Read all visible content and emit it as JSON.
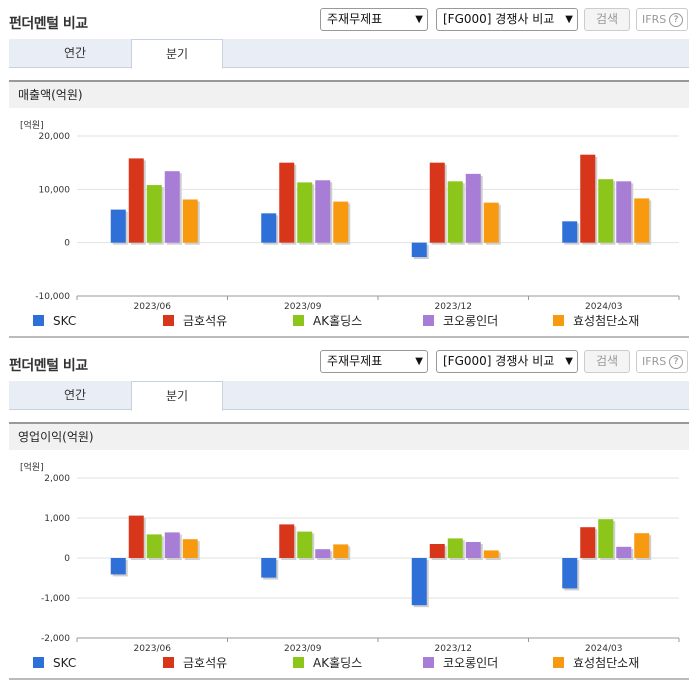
{
  "panels": [
    {
      "title": "펀더멘털 비교",
      "select1": "주재무제표",
      "select2": "[FG000] 경쟁사 비교",
      "search_label": "검색",
      "ifrs_label": "IFRS",
      "help_label": "?",
      "tabs": [
        "연간",
        "분기"
      ],
      "active_tab": 1,
      "chart_title": "매출액(억원)",
      "unit_label": "[억원]"
    },
    {
      "title": "펀더멘털 비교",
      "select1": "주재무제표",
      "select2": "[FG000] 경쟁사 비교",
      "search_label": "검색",
      "ifrs_label": "IFRS",
      "help_label": "?",
      "tabs": [
        "연간",
        "분기"
      ],
      "active_tab": 1,
      "chart_title": "영업이익(억원)",
      "unit_label": "[억원]"
    }
  ],
  "series_colors": [
    "#2e6fd8",
    "#d8361b",
    "#8cc61a",
    "#a77dd6",
    "#f89a10"
  ],
  "chart_data": [
    {
      "type": "bar",
      "title": "매출액(억원)",
      "ylabel": "[억원]",
      "categories": [
        "2023/06",
        "2023/09",
        "2023/12",
        "2024/03"
      ],
      "yticks": [
        "20,000",
        "10,000",
        "0",
        "-10,000"
      ],
      "ylim": [
        -10000,
        20000
      ],
      "series": [
        {
          "name": "SKC",
          "values": [
            6200,
            5500,
            -2700,
            4000
          ]
        },
        {
          "name": "금호석유",
          "values": [
            15800,
            15000,
            15000,
            16500
          ]
        },
        {
          "name": "AK홀딩스",
          "values": [
            10800,
            11300,
            11500,
            11900
          ]
        },
        {
          "name": "코오롱인더",
          "values": [
            13400,
            11700,
            12900,
            11500
          ]
        },
        {
          "name": "효성첨단소재",
          "values": [
            8100,
            7700,
            7500,
            8300
          ]
        }
      ]
    },
    {
      "type": "bar",
      "title": "영업이익(억원)",
      "ylabel": "[억원]",
      "categories": [
        "2023/06",
        "2023/09",
        "2023/12",
        "2024/03"
      ],
      "yticks": [
        "2,000",
        "1,000",
        "0",
        "-1,000",
        "-2,000"
      ],
      "ylim": [
        -2000,
        2000
      ],
      "series": [
        {
          "name": "SKC",
          "values": [
            -410,
            -490,
            -1180,
            -760
          ]
        },
        {
          "name": "금호석유",
          "values": [
            1060,
            840,
            350,
            770
          ]
        },
        {
          "name": "AK홀딩스",
          "values": [
            590,
            660,
            490,
            970
          ]
        },
        {
          "name": "코오롱인더",
          "values": [
            640,
            220,
            400,
            280
          ]
        },
        {
          "name": "효성첨단소재",
          "values": [
            470,
            340,
            190,
            620
          ]
        }
      ]
    }
  ]
}
